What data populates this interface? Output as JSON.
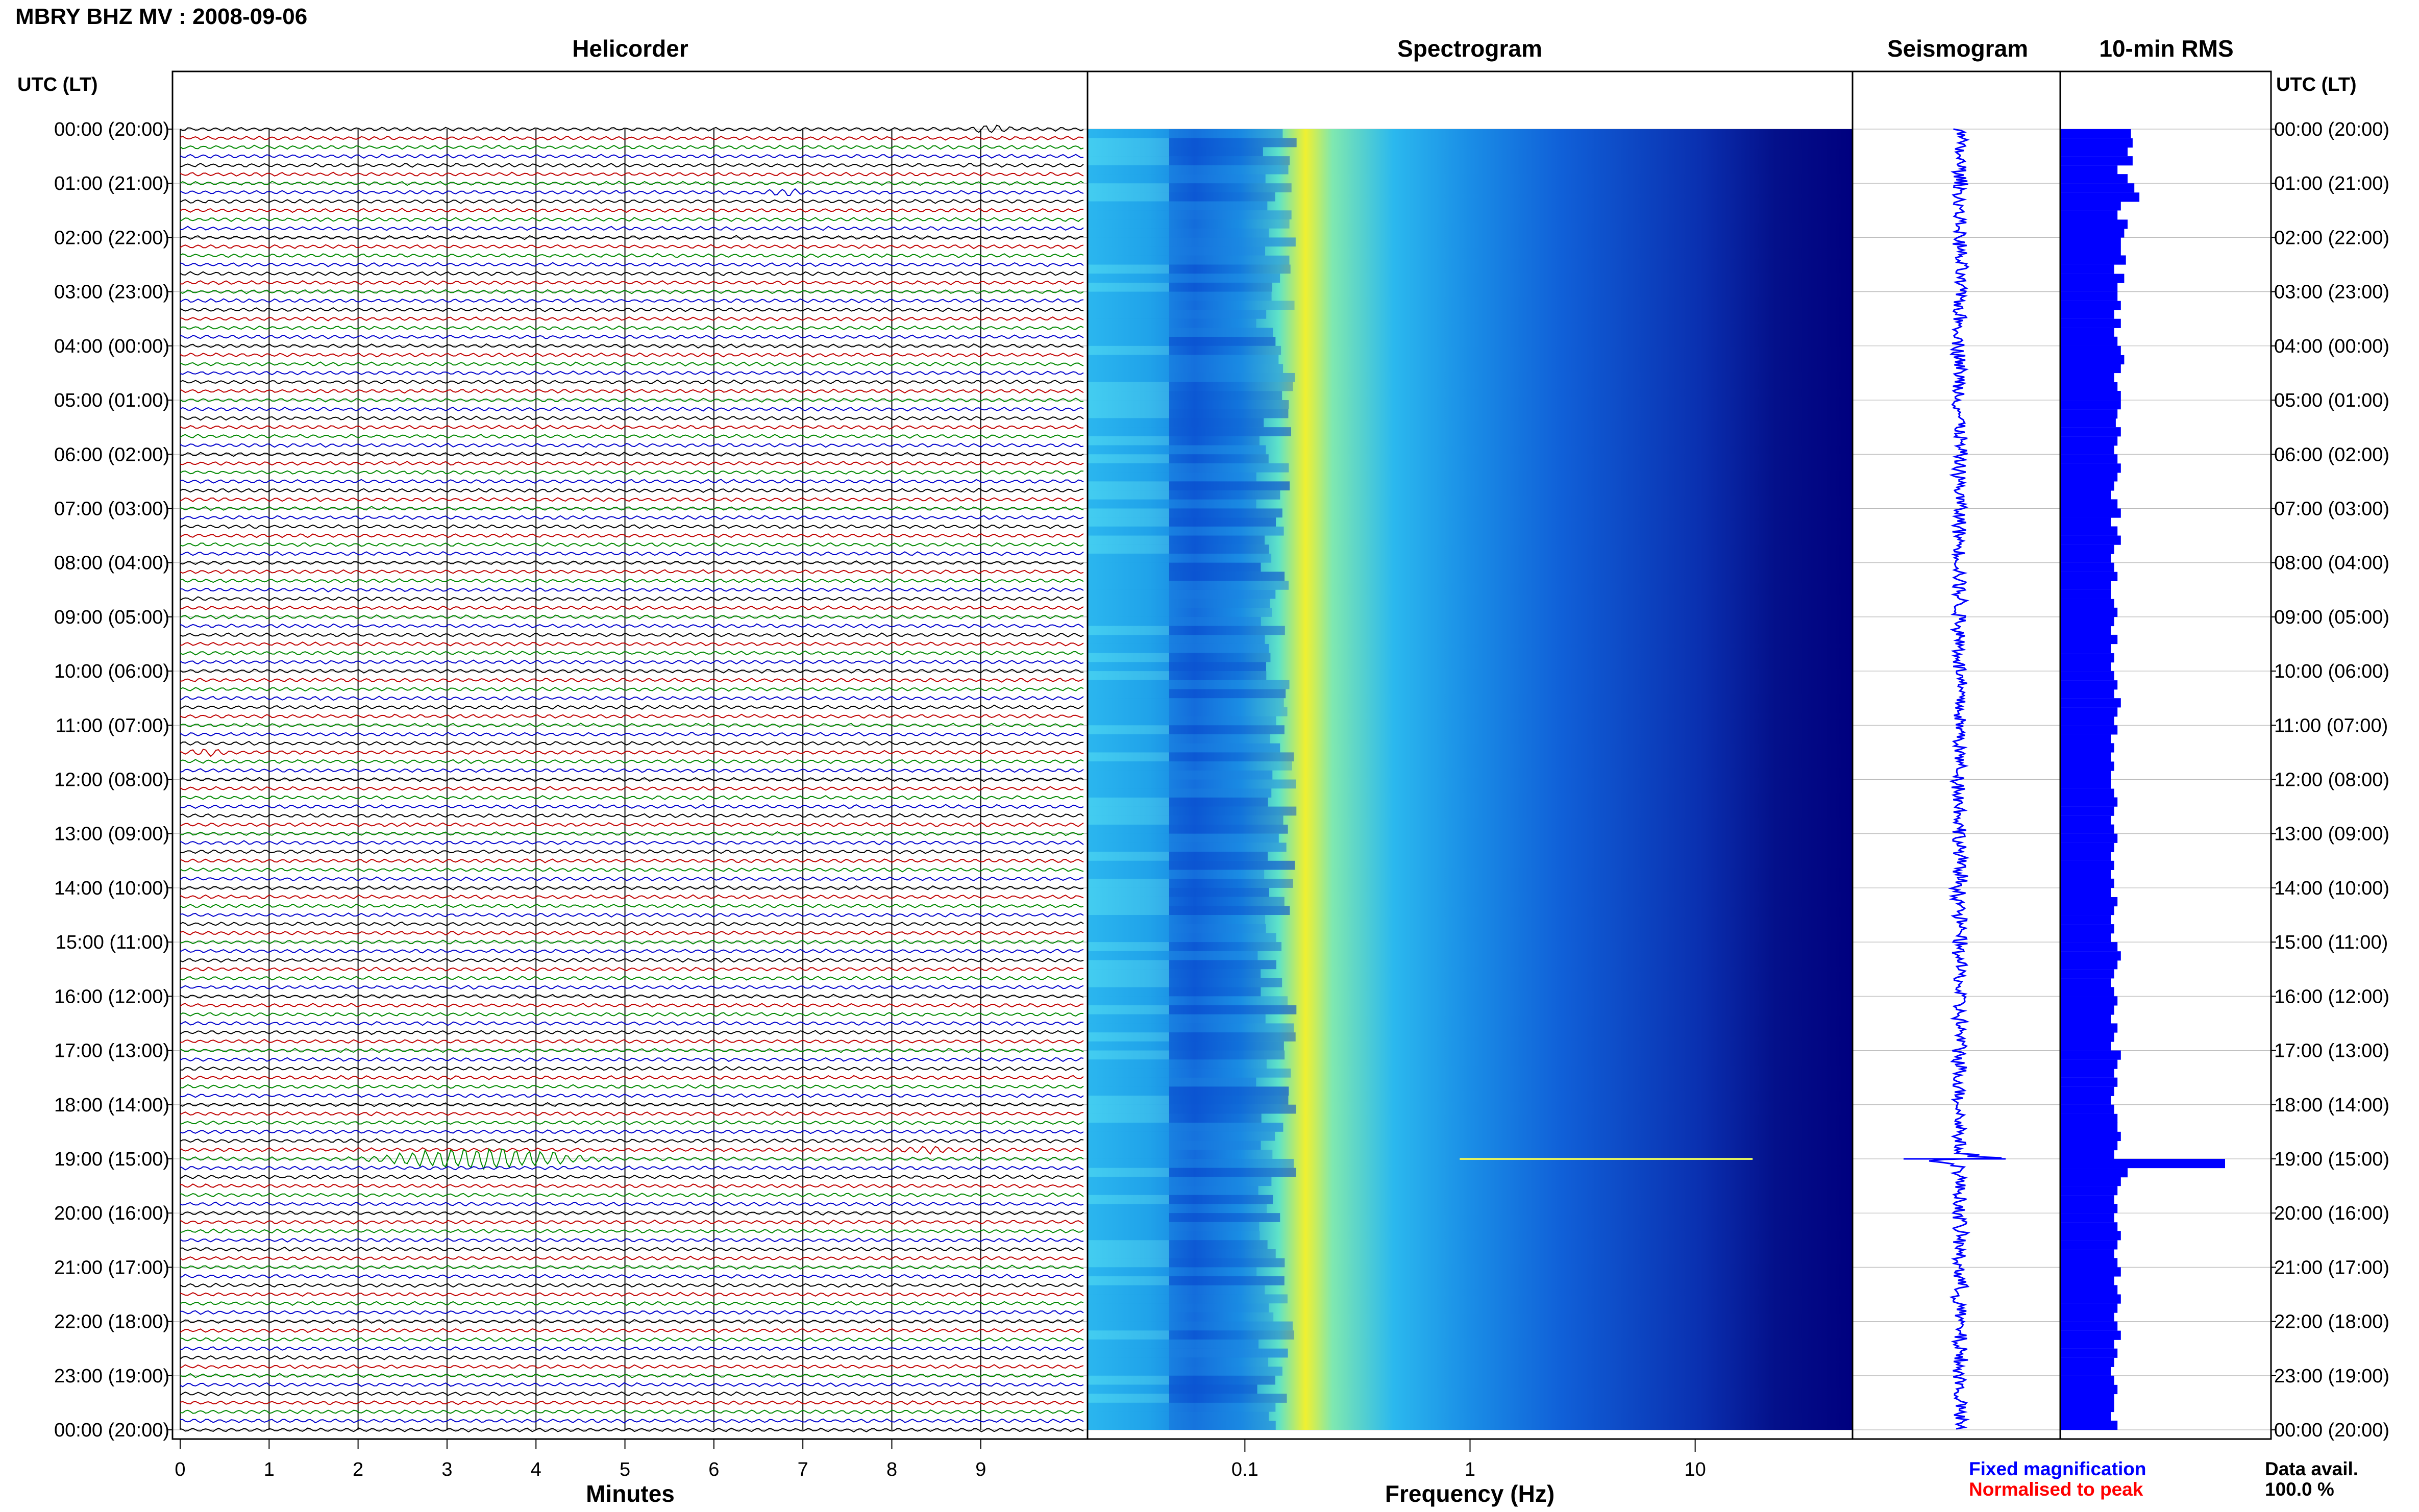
{
  "title": "MBRY BHZ MV : 2008-09-06",
  "panels": {
    "helicorder": "Helicorder",
    "spectrogram": "Spectrogram",
    "seismogram": "Seismogram",
    "rms": "10-min RMS"
  },
  "time_header": "UTC (LT)",
  "xlabels": {
    "helicorder": "Minutes",
    "spectrogram": "Frequency (Hz)"
  },
  "legend": {
    "fixed": "Fixed magnification",
    "normalised": "Normalised to peak",
    "fixed_color": "#0000ff",
    "normalised_color": "#ff0000"
  },
  "data_avail": {
    "label": "Data avail.",
    "value": "100.0 %"
  },
  "colors": {
    "trace_cycle": [
      "#000000",
      "#c00000",
      "#008800",
      "#0000cc"
    ],
    "rms_bar": "#0000ff",
    "spectrogram_low": "#00007f",
    "spectrogram_high": "#ffff00"
  },
  "chart_data": [
    {
      "type": "line",
      "panel": "helicorder",
      "title": "Helicorder",
      "xlabel": "Minutes",
      "xlim": [
        0,
        10
      ],
      "x_ticks": [
        0,
        1,
        2,
        3,
        4,
        5,
        6,
        7,
        8,
        9
      ],
      "rows_per_hour": 6,
      "total_hours": 24,
      "y_tick_labels": [
        "00:00 (20:00)",
        "01:00 (21:00)",
        "02:00 (22:00)",
        "03:00 (23:00)",
        "04:00 (00:00)",
        "05:00 (01:00)",
        "06:00 (02:00)",
        "07:00 (03:00)",
        "08:00 (04:00)",
        "09:00 (05:00)",
        "10:00 (06:00)",
        "11:00 (07:00)",
        "12:00 (08:00)",
        "13:00 (09:00)",
        "14:00 (10:00)",
        "15:00 (11:00)",
        "16:00 (12:00)",
        "17:00 (13:00)",
        "18:00 (14:00)",
        "19:00 (15:00)",
        "20:00 (16:00)",
        "21:00 (17:00)",
        "22:00 (18:00)",
        "23:00 (19:00)",
        "00:00 (20:00)"
      ],
      "events": [
        {
          "hour": 0,
          "start_min": 8.8,
          "end_min": 9.4,
          "amp": 1.6
        },
        {
          "hour": 1.2,
          "start_min": 6.5,
          "end_min": 7.1,
          "amp": 1.4
        },
        {
          "hour": 19,
          "start_min": 2.0,
          "end_min": 4.8,
          "amp": 6.0
        },
        {
          "hour": 18.9,
          "start_min": 7.9,
          "end_min": 8.9,
          "amp": 1.3
        },
        {
          "hour": 11.5,
          "start_min": 0.0,
          "end_min": 0.6,
          "amp": 1.2
        }
      ]
    },
    {
      "type": "heatmap",
      "panel": "spectrogram",
      "title": "Spectrogram",
      "xlabel": "Frequency (Hz)",
      "x_scale": "log",
      "xlim": [
        0.02,
        50
      ],
      "x_tick_labels": [
        "0.1",
        "1",
        "10"
      ],
      "x_ticks": [
        0.1,
        1,
        10
      ],
      "ylim": [
        0,
        24
      ],
      "peak_band_hz": [
        0.2,
        0.3
      ],
      "spectral_line_hour": 19
    },
    {
      "type": "line",
      "panel": "seismogram",
      "title": "Seismogram",
      "ylim": [
        0,
        24
      ],
      "event_hour": 19
    },
    {
      "type": "bar",
      "panel": "rms",
      "title": "10-min RMS",
      "orientation": "horizontal",
      "bar_hours": [
        0,
        0.17,
        0.33,
        0.5,
        0.67,
        0.83,
        1,
        1.17,
        1.33,
        1.5,
        1.67,
        1.83,
        2,
        2.17,
        2.33,
        2.5,
        2.67,
        2.83,
        3,
        3.17,
        3.33,
        3.5,
        3.67,
        3.83,
        4,
        4.17,
        4.33,
        4.5,
        4.67,
        4.83,
        5,
        5.17,
        5.33,
        5.5,
        5.67,
        5.83,
        6,
        6.17,
        6.33,
        6.5,
        6.67,
        6.83,
        7,
        7.17,
        7.33,
        7.5,
        7.67,
        7.83,
        8,
        8.17,
        8.33,
        8.5,
        8.67,
        8.83,
        9,
        9.17,
        9.33,
        9.5,
        9.67,
        9.83,
        10,
        10.17,
        10.33,
        10.5,
        10.67,
        10.83,
        11,
        11.17,
        11.33,
        11.5,
        11.67,
        11.83,
        12,
        12.17,
        12.33,
        12.5,
        12.67,
        12.83,
        13,
        13.17,
        13.33,
        13.5,
        13.67,
        13.83,
        14,
        14.17,
        14.33,
        14.5,
        14.67,
        14.83,
        15,
        15.17,
        15.33,
        15.5,
        15.67,
        15.83,
        16,
        16.17,
        16.33,
        16.5,
        16.67,
        16.83,
        17,
        17.17,
        17.33,
        17.5,
        17.67,
        17.83,
        18,
        18.17,
        18.33,
        18.5,
        18.67,
        18.83,
        19,
        19.17,
        19.33,
        19.5,
        19.67,
        19.83,
        20,
        20.17,
        20.33,
        20.5,
        20.67,
        20.83,
        21,
        21.17,
        21.33,
        21.5,
        21.67,
        21.83,
        22,
        22.17,
        22.33,
        22.5,
        22.67,
        22.83,
        23,
        23.17,
        23.33,
        23.5,
        23.67,
        23.83
      ],
      "values": [
        0.42,
        0.43,
        0.4,
        0.43,
        0.34,
        0.4,
        0.44,
        0.47,
        0.36,
        0.34,
        0.4,
        0.38,
        0.36,
        0.36,
        0.39,
        0.32,
        0.38,
        0.34,
        0.34,
        0.36,
        0.32,
        0.36,
        0.32,
        0.34,
        0.36,
        0.38,
        0.36,
        0.32,
        0.34,
        0.36,
        0.36,
        0.34,
        0.33,
        0.36,
        0.34,
        0.32,
        0.34,
        0.36,
        0.34,
        0.32,
        0.3,
        0.34,
        0.36,
        0.3,
        0.34,
        0.36,
        0.32,
        0.3,
        0.32,
        0.34,
        0.3,
        0.3,
        0.32,
        0.34,
        0.32,
        0.3,
        0.34,
        0.3,
        0.32,
        0.3,
        0.32,
        0.34,
        0.32,
        0.36,
        0.34,
        0.32,
        0.34,
        0.3,
        0.32,
        0.3,
        0.32,
        0.3,
        0.3,
        0.32,
        0.34,
        0.32,
        0.3,
        0.32,
        0.34,
        0.32,
        0.3,
        0.32,
        0.3,
        0.32,
        0.3,
        0.34,
        0.32,
        0.3,
        0.32,
        0.3,
        0.34,
        0.36,
        0.34,
        0.32,
        0.3,
        0.32,
        0.34,
        0.32,
        0.3,
        0.34,
        0.32,
        0.3,
        0.36,
        0.34,
        0.32,
        0.34,
        0.32,
        0.3,
        0.32,
        0.34,
        0.34,
        0.36,
        0.34,
        0.32,
        1.0,
        0.4,
        0.36,
        0.34,
        0.32,
        0.34,
        0.32,
        0.34,
        0.36,
        0.34,
        0.32,
        0.34,
        0.36,
        0.32,
        0.34,
        0.36,
        0.34,
        0.32,
        0.34,
        0.36,
        0.32,
        0.34,
        0.32,
        0.3,
        0.32,
        0.34,
        0.32,
        0.32,
        0.3,
        0.34
      ]
    }
  ]
}
